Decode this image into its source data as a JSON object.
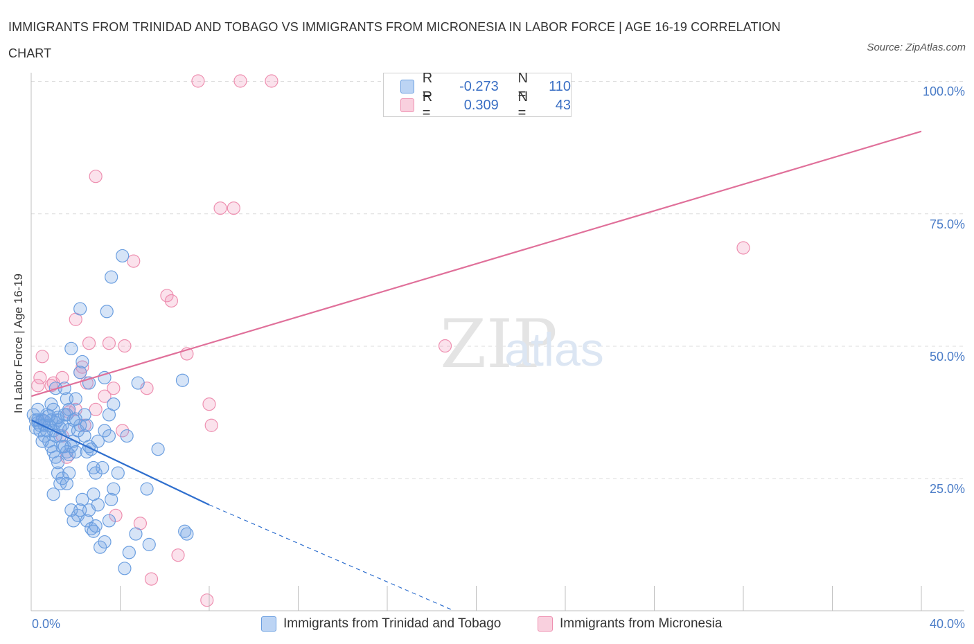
{
  "header": {
    "title": "IMMIGRANTS FROM TRINIDAD AND TOBAGO VS IMMIGRANTS FROM MICRONESIA IN LABOR FORCE | AGE 16-19 CORRELATION CHART",
    "source": "Source: ZipAtlas.com"
  },
  "legend": {
    "blue": {
      "r_label": "R =",
      "r_value": "-0.273",
      "n_label": "N =",
      "n_value": "110"
    },
    "pink": {
      "r_label": "R =",
      "r_value": "0.309",
      "n_label": "N =",
      "n_value": "43"
    }
  },
  "colors": {
    "blue": "#6a9ee0",
    "pink": "#ee8fb0",
    "blue_line": "#2f6fce",
    "pink_line": "#e0709a",
    "tick_text": "#4a7cc7"
  },
  "chart_data": {
    "type": "scatter",
    "title": "IMMIGRANTS FROM TRINIDAD AND TOBAGO VS IMMIGRANTS FROM MICRONESIA IN LABOR FORCE | AGE 16-19 CORRELATION CHART",
    "xlabel": "",
    "ylabel": "In Labor Force | Age 16-19",
    "xlim": [
      0,
      40
    ],
    "ylim": [
      0,
      100
    ],
    "x_tick_labels": [
      "0.0%",
      "40.0%"
    ],
    "y_tick_labels": [
      "25.0%",
      "50.0%",
      "75.0%",
      "100.0%"
    ],
    "y_ticks": [
      25,
      50,
      75,
      100
    ],
    "grid": true,
    "watermark": "ZIPatlas",
    "series": [
      {
        "name": "Immigrants from Trinidad and Tobago",
        "color": "blue",
        "points": [
          [
            0.1,
            37
          ],
          [
            0.2,
            36
          ],
          [
            0.3,
            35.5
          ],
          [
            0.2,
            34.5
          ],
          [
            0.3,
            36
          ],
          [
            0.4,
            35
          ],
          [
            0.5,
            36
          ],
          [
            0.6,
            35
          ],
          [
            0.4,
            34
          ],
          [
            0.7,
            37
          ],
          [
            0.8,
            35
          ],
          [
            0.9,
            36
          ],
          [
            1.0,
            34
          ],
          [
            1.1,
            35.5
          ],
          [
            1.2,
            36
          ],
          [
            1.3,
            34.5
          ],
          [
            1.4,
            35
          ],
          [
            1.5,
            37
          ],
          [
            0.6,
            33
          ],
          [
            0.8,
            32
          ],
          [
            0.9,
            31
          ],
          [
            1.0,
            30
          ],
          [
            1.1,
            29
          ],
          [
            1.2,
            28
          ],
          [
            1.3,
            33
          ],
          [
            1.5,
            31
          ],
          [
            1.6,
            30
          ],
          [
            1.7,
            29.5
          ],
          [
            1.8,
            31
          ],
          [
            1.9,
            32
          ],
          [
            2.0,
            30
          ],
          [
            2.1,
            34
          ],
          [
            2.2,
            35
          ],
          [
            2.4,
            33
          ],
          [
            2.5,
            30
          ],
          [
            2.6,
            31
          ],
          [
            2.8,
            27
          ],
          [
            2.9,
            26
          ],
          [
            3.0,
            32
          ],
          [
            3.3,
            34
          ],
          [
            3.5,
            33
          ],
          [
            0.9,
            39
          ],
          [
            1.0,
            38
          ],
          [
            1.1,
            42
          ],
          [
            1.5,
            42
          ],
          [
            1.6,
            40
          ],
          [
            1.7,
            38
          ],
          [
            1.6,
            37
          ],
          [
            2.0,
            40
          ],
          [
            2.2,
            45
          ],
          [
            1.8,
            49.5
          ],
          [
            2.3,
            47
          ],
          [
            2.2,
            57
          ],
          [
            3.4,
            56.5
          ],
          [
            3.3,
            44
          ],
          [
            3.5,
            37
          ],
          [
            3.7,
            39
          ],
          [
            2.6,
            43
          ],
          [
            4.1,
            67
          ],
          [
            3.6,
            63
          ],
          [
            4.8,
            43
          ],
          [
            6.8,
            43.5
          ],
          [
            5.7,
            30.5
          ],
          [
            4.3,
            33
          ],
          [
            1.2,
            26
          ],
          [
            1.3,
            24
          ],
          [
            1.4,
            25
          ],
          [
            1.6,
            24
          ],
          [
            1.7,
            26
          ],
          [
            1.0,
            22
          ],
          [
            1.8,
            19
          ],
          [
            1.9,
            17
          ],
          [
            2.1,
            18
          ],
          [
            2.3,
            21
          ],
          [
            2.5,
            17
          ],
          [
            2.6,
            19
          ],
          [
            2.7,
            15.5
          ],
          [
            2.8,
            15
          ],
          [
            2.9,
            16
          ],
          [
            3.0,
            20
          ],
          [
            3.1,
            12
          ],
          [
            3.3,
            13
          ],
          [
            3.5,
            17
          ],
          [
            3.6,
            21
          ],
          [
            3.7,
            23
          ],
          [
            3.2,
            27
          ],
          [
            3.9,
            26
          ],
          [
            2.8,
            22
          ],
          [
            2.2,
            19
          ],
          [
            4.4,
            11
          ],
          [
            4.2,
            8
          ],
          [
            4.7,
            14.5
          ],
          [
            5.2,
            23
          ],
          [
            5.3,
            12.5
          ],
          [
            6.9,
            15
          ],
          [
            7.0,
            14.5
          ],
          [
            0.5,
            32
          ],
          [
            0.7,
            34
          ],
          [
            1.1,
            33
          ],
          [
            1.4,
            31
          ],
          [
            2.4,
            37
          ],
          [
            2.5,
            35
          ],
          [
            2.7,
            30.5
          ],
          [
            0.3,
            38
          ],
          [
            1.9,
            36
          ],
          [
            1.2,
            36.5
          ],
          [
            0.6,
            35.8
          ],
          [
            1.7,
            34.2
          ],
          [
            2.0,
            36.2
          ],
          [
            0.8,
            36.8
          ]
        ]
      },
      {
        "name": "Immigrants from Micronesia",
        "color": "pink",
        "points": [
          [
            7.5,
            100
          ],
          [
            9.4,
            100
          ],
          [
            10.8,
            100
          ],
          [
            2.9,
            82
          ],
          [
            8.5,
            76
          ],
          [
            9.1,
            76
          ],
          [
            4.6,
            66
          ],
          [
            6.1,
            59.5
          ],
          [
            6.3,
            58.5
          ],
          [
            32.0,
            68.5
          ],
          [
            18.6,
            50
          ],
          [
            2.0,
            55
          ],
          [
            2.6,
            50.5
          ],
          [
            3.5,
            50.5
          ],
          [
            4.2,
            50
          ],
          [
            7.0,
            48.5
          ],
          [
            0.5,
            48
          ],
          [
            0.4,
            44
          ],
          [
            1.0,
            43
          ],
          [
            1.4,
            44
          ],
          [
            2.2,
            45
          ],
          [
            2.3,
            46
          ],
          [
            2.5,
            43
          ],
          [
            3.7,
            42
          ],
          [
            5.2,
            42
          ],
          [
            3.3,
            40.5
          ],
          [
            8.0,
            39
          ],
          [
            2.9,
            38
          ],
          [
            1.7,
            37.5
          ],
          [
            2.4,
            35
          ],
          [
            8.1,
            35
          ],
          [
            0.5,
            36
          ],
          [
            0.3,
            42.5
          ],
          [
            1.4,
            33
          ],
          [
            4.1,
            34
          ],
          [
            1.6,
            29
          ],
          [
            3.8,
            18
          ],
          [
            4.9,
            16.5
          ],
          [
            6.6,
            10.5
          ],
          [
            5.4,
            6
          ],
          [
            7.9,
            2
          ],
          [
            2.0,
            38
          ],
          [
            0.9,
            42.5
          ]
        ]
      }
    ],
    "trend_lines": [
      {
        "series": "Immigrants from Trinidad and Tobago",
        "solid_from": [
          0,
          36
        ],
        "solid_to": [
          8,
          20
        ],
        "dashed_to": [
          19,
          0
        ]
      },
      {
        "series": "Immigrants from Micronesia",
        "from": [
          0,
          40.5
        ],
        "to": [
          40,
          90.5
        ]
      }
    ]
  },
  "bottom_legend": {
    "blue_label": "Immigrants from Trinidad and Tobago",
    "pink_label": "Immigrants from Micronesia"
  }
}
